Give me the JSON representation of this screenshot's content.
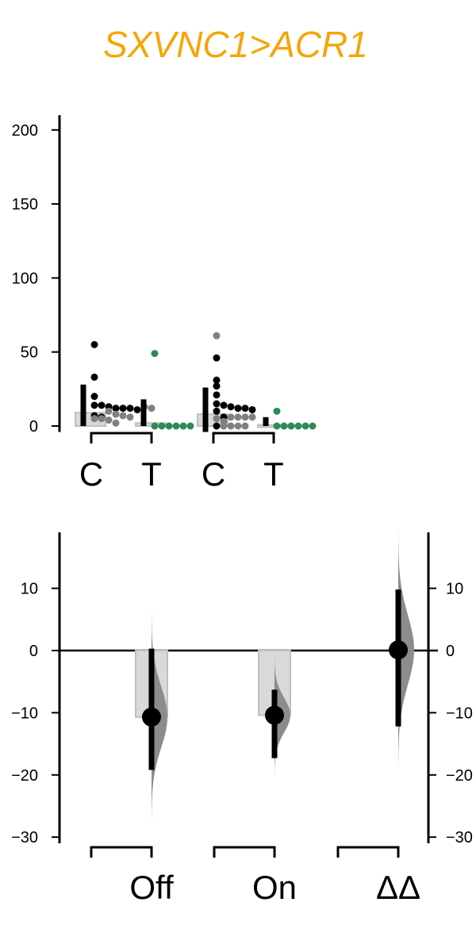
{
  "title": "SXVNC1>ACR1",
  "colors": {
    "title": "#F5A50A",
    "control_points": "#000000",
    "control_points_alt": "#808080",
    "test_points": "#2E8B57",
    "bar_fill": "#D9D9D9",
    "bar_edge": "#BFBFBF",
    "halfviolin": "#8C8C8C",
    "axis": "#000000"
  },
  "chart_data": [
    {
      "type": "scatter",
      "name": "raw-data",
      "ylim": [
        -4,
        210
      ],
      "yticks": [
        0,
        50,
        100,
        150,
        200
      ],
      "categories": [
        "C",
        "T",
        "C",
        "T"
      ],
      "groups": [
        {
          "label": "C",
          "mean": 9,
          "sd_range": [
            0,
            28
          ],
          "points_black": [
            55,
            33,
            20,
            14,
            14,
            13,
            12,
            12,
            12,
            11,
            7,
            6
          ],
          "points_gray": [
            13,
            12,
            10,
            8,
            7,
            6,
            5,
            5,
            4,
            2
          ]
        },
        {
          "label": "T",
          "mean": 2,
          "sd_range": [
            0,
            18
          ],
          "points_green": [
            49,
            0,
            0,
            0,
            0,
            0,
            0
          ]
        },
        {
          "label": "C",
          "mean": 8,
          "sd_range": [
            -4,
            26
          ],
          "points_black": [
            46,
            31,
            27,
            21,
            15,
            14,
            13,
            12,
            12,
            11,
            10,
            6,
            0
          ],
          "points_gray": [
            61,
            6,
            6,
            6,
            6,
            5,
            3,
            0,
            0,
            0,
            0
          ]
        },
        {
          "label": "T",
          "mean": 0,
          "sd_range": [
            0,
            6
          ],
          "points_green": [
            10,
            0,
            0,
            0,
            0,
            0,
            0
          ]
        }
      ]
    },
    {
      "type": "estimation",
      "name": "effect-sizes",
      "ylim": [
        -31,
        19
      ],
      "yticks": [
        -30,
        -20,
        -10,
        0,
        10
      ],
      "right_yticks": [
        -30,
        -20,
        -10,
        0,
        10
      ],
      "categories": [
        "Off",
        "On",
        "ΔΔ"
      ],
      "effects": [
        {
          "label": "Off",
          "value": -10.7,
          "ci": [
            -19.2,
            0.3
          ],
          "bar": -10.7
        },
        {
          "label": "On",
          "value": -10.4,
          "ci": [
            -17.3,
            -6.3
          ],
          "bar": -10.4
        },
        {
          "label": "ΔΔ",
          "value": 0.1,
          "ci": [
            -12.2,
            9.8
          ],
          "bar": null
        }
      ]
    }
  ]
}
